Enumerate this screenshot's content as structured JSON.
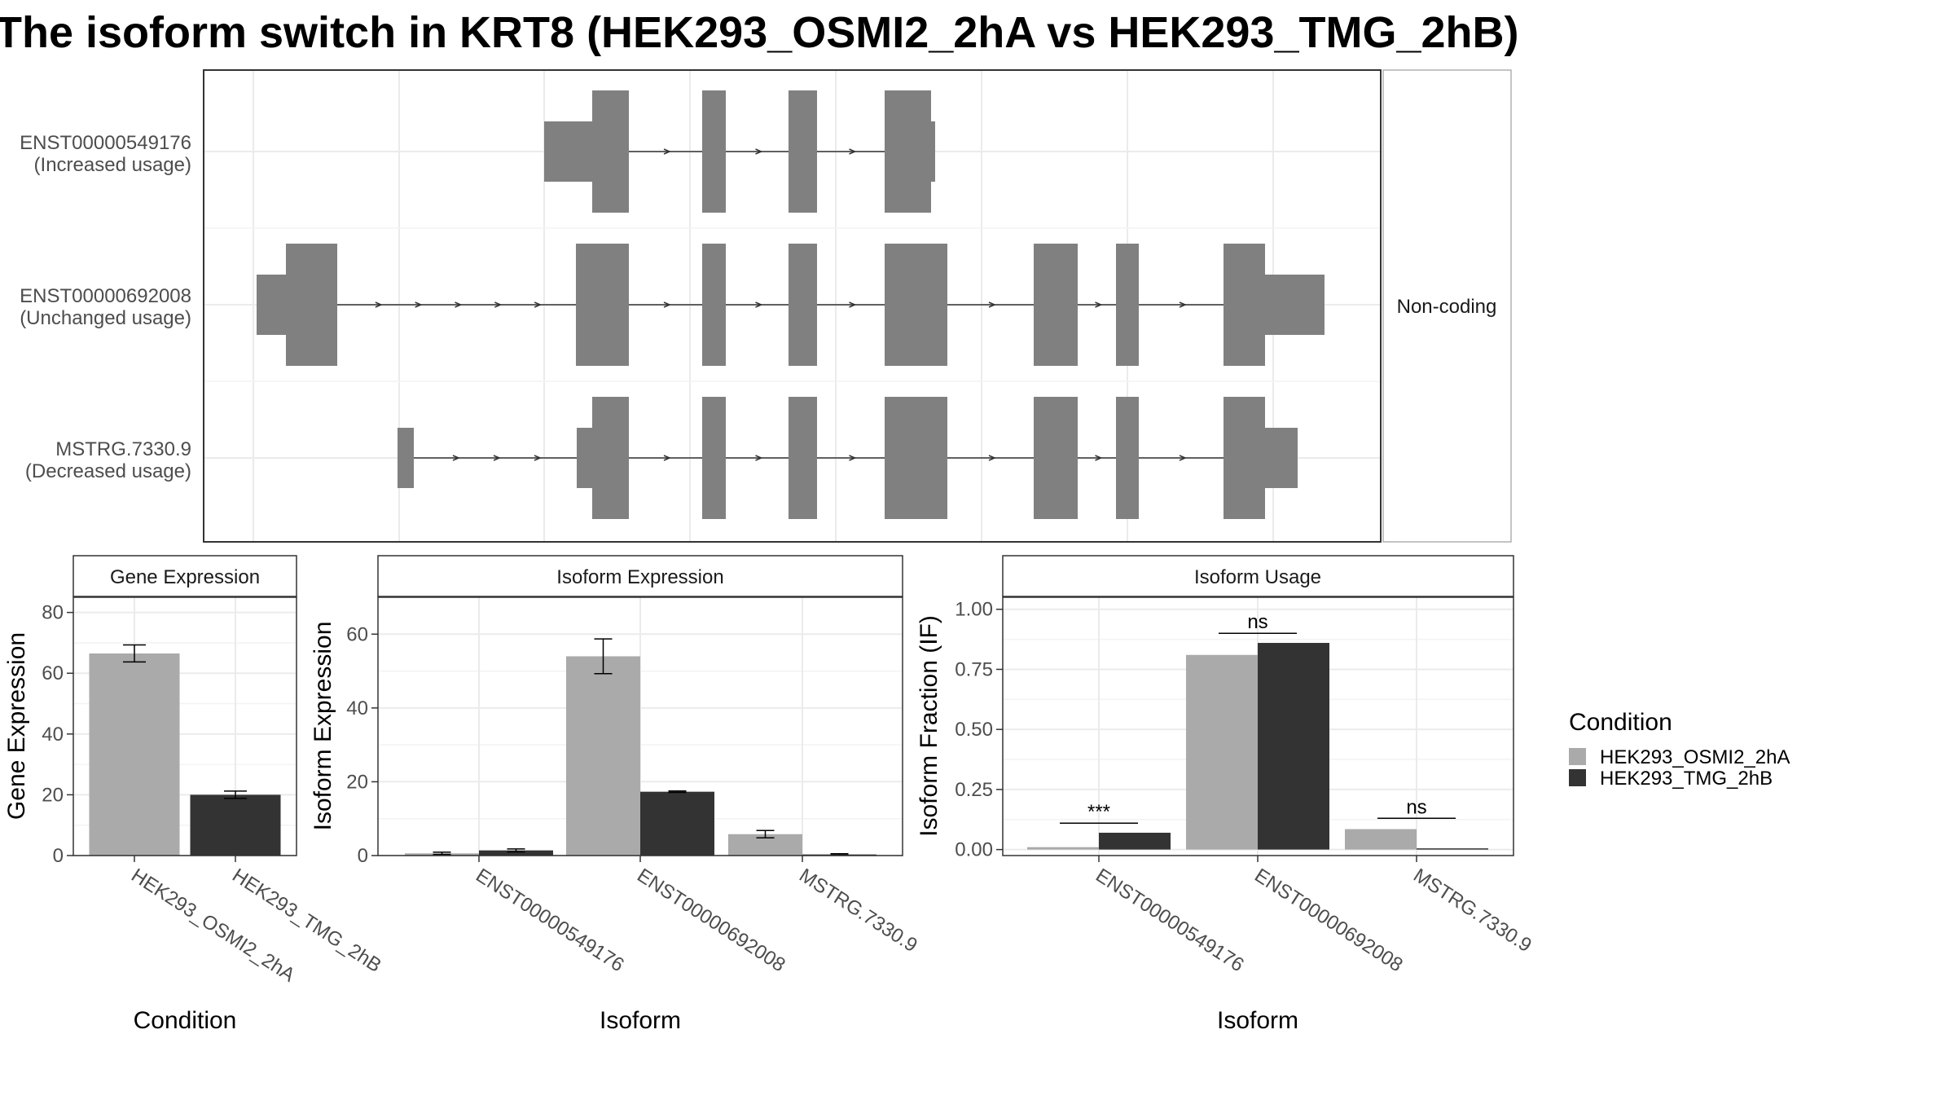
{
  "title": "The isoform switch in KRT8 (HEK293_OSMI2_2hA vs HEK293_TMG_2hB)",
  "colors": {
    "condition_a": "#aaaaaa",
    "condition_b": "#333333",
    "exon": "#808080",
    "grid": "#ebebeb",
    "strip_bg": "#ffffff",
    "panel_border": "#333333",
    "text": "#000000",
    "axis_text": "#4d4d4d"
  },
  "structure": {
    "strip_label": "Non-coding",
    "isoforms": [
      {
        "id": "ENST00000549176",
        "usage": "(Increased usage)"
      },
      {
        "id": "ENST00000692008",
        "usage": "(Unchanged usage)"
      },
      {
        "id": "MSTRG.7330.9",
        "usage": "(Decreased usage)"
      }
    ]
  },
  "legend": {
    "title": "Condition",
    "items": [
      "HEK293_OSMI2_2hA",
      "HEK293_TMG_2hB"
    ]
  },
  "chart_data": [
    {
      "type": "bar",
      "title": "Gene Expression",
      "xlabel": "Condition",
      "ylabel": "Gene Expression",
      "ylim": [
        0,
        85
      ],
      "yticks": [
        0,
        20,
        40,
        60,
        80
      ],
      "ytick_labels": [
        "0",
        "20",
        "40",
        "60",
        "80"
      ],
      "categories": [
        "HEK293_OSMI2_2hA",
        "HEK293_TMG_2hB"
      ],
      "values": [
        66.5,
        20.0
      ],
      "errors": [
        2.8,
        1.2
      ],
      "grid": true
    },
    {
      "type": "bar",
      "title": "Isoform Expression",
      "xlabel": "Isoform",
      "ylabel": "Isoform Expression",
      "ylim": [
        0,
        70
      ],
      "yticks": [
        0,
        20,
        40,
        60
      ],
      "ytick_labels": [
        "0",
        "20",
        "40",
        "60"
      ],
      "categories": [
        "ENST00000549176",
        "ENST00000692008",
        "MSTRG.7330.9"
      ],
      "series": [
        {
          "name": "HEK293_OSMI2_2hA",
          "values": [
            0.6,
            54.0,
            5.8
          ],
          "errors": [
            0.3,
            4.7,
            1.0
          ]
        },
        {
          "name": "HEK293_TMG_2hB",
          "values": [
            1.4,
            17.3,
            0.3
          ],
          "errors": [
            0.4,
            0.2,
            0.2
          ]
        }
      ],
      "grid": true
    },
    {
      "type": "bar",
      "title": "Isoform Usage",
      "xlabel": "Isoform",
      "ylabel": "Isoform Fraction (IF)",
      "ylim": [
        -0.025,
        1.05
      ],
      "yticks": [
        0,
        0.25,
        0.5,
        0.75,
        1.0
      ],
      "ytick_labels": [
        "0.00",
        "0.25",
        "0.50",
        "0.75",
        "1.00"
      ],
      "categories": [
        "ENST00000549176",
        "ENST00000692008",
        "MSTRG.7330.9"
      ],
      "series": [
        {
          "name": "HEK293_OSMI2_2hA",
          "values": [
            0.01,
            0.81,
            0.085
          ]
        },
        {
          "name": "HEK293_TMG_2hB",
          "values": [
            0.07,
            0.86,
            0.005
          ]
        }
      ],
      "significance": [
        "***",
        "ns",
        "ns"
      ],
      "significance_y": [
        0.11,
        0.9,
        0.13
      ],
      "grid": true
    }
  ]
}
